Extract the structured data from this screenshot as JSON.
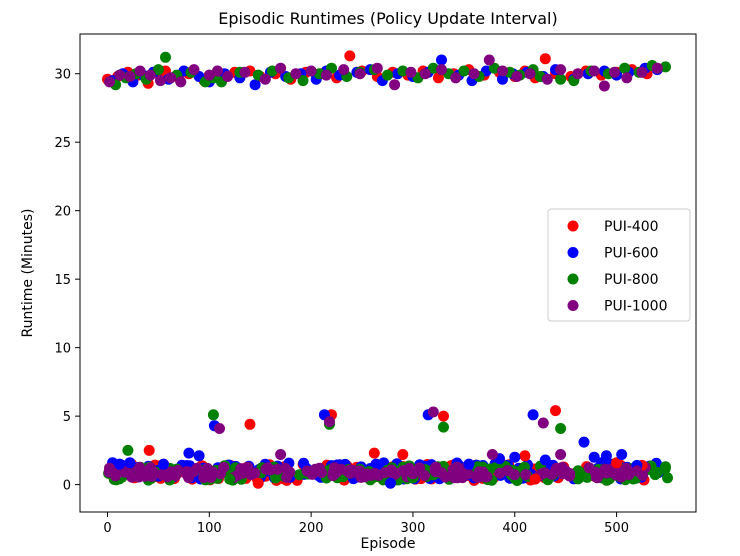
{
  "chart_data": {
    "type": "scatter",
    "title": "Episodic Runtimes (Policy Update Interval)",
    "xlabel": "Episode",
    "ylabel": "Runtime (Minutes)",
    "xlim": [
      -27,
      578
    ],
    "ylim": [
      -2,
      32.9
    ],
    "xticks": [
      0,
      100,
      200,
      300,
      400,
      500
    ],
    "yticks": [
      0,
      5,
      10,
      15,
      20,
      25,
      30
    ],
    "grid": false,
    "legend_position": "center-right",
    "series": [
      {
        "name": "PUI-400",
        "color": "#ff0000",
        "points": [
          [
            0,
            29.6
          ],
          [
            10,
            29.8
          ],
          [
            20,
            30.1
          ],
          [
            30,
            29.9
          ],
          [
            40,
            29.3
          ],
          [
            50,
            30.0
          ],
          [
            57,
            30.2
          ],
          [
            70,
            29.7
          ],
          [
            80,
            30.0
          ],
          [
            95,
            29.5
          ],
          [
            110,
            29.9
          ],
          [
            125,
            30.1
          ],
          [
            140,
            30.2
          ],
          [
            150,
            29.8
          ],
          [
            165,
            30.0
          ],
          [
            180,
            29.6
          ],
          [
            195,
            30.1
          ],
          [
            210,
            30.0
          ],
          [
            225,
            29.7
          ],
          [
            238,
            31.3
          ],
          [
            250,
            30.2
          ],
          [
            265,
            29.8
          ],
          [
            280,
            30.1
          ],
          [
            295,
            29.9
          ],
          [
            310,
            30.2
          ],
          [
            325,
            29.7
          ],
          [
            340,
            30.0
          ],
          [
            355,
            30.3
          ],
          [
            370,
            29.9
          ],
          [
            385,
            30.1
          ],
          [
            400,
            29.8
          ],
          [
            410,
            30.2
          ],
          [
            420,
            29.7
          ],
          [
            430,
            31.1
          ],
          [
            440,
            30.0
          ],
          [
            455,
            29.8
          ],
          [
            470,
            30.2
          ],
          [
            485,
            29.9
          ],
          [
            500,
            30.1
          ],
          [
            515,
            30.3
          ],
          [
            530,
            30.0
          ],
          [
            41,
            2.5
          ],
          [
            140,
            4.4
          ],
          [
            148,
            0.1
          ],
          [
            220,
            5.1
          ],
          [
            262,
            2.3
          ],
          [
            290,
            2.2
          ],
          [
            330,
            5.0
          ],
          [
            410,
            2.1
          ],
          [
            440,
            5.4
          ],
          [
            420,
            0.4
          ],
          [
            500,
            1.6
          ],
          [
            525,
            1.4
          ]
        ]
      },
      {
        "name": "PUI-600",
        "color": "#0000ff",
        "points": [
          [
            5,
            29.5
          ],
          [
            15,
            30.0
          ],
          [
            25,
            29.4
          ],
          [
            35,
            29.9
          ],
          [
            45,
            30.1
          ],
          [
            60,
            29.6
          ],
          [
            75,
            30.2
          ],
          [
            90,
            29.8
          ],
          [
            100,
            29.4
          ],
          [
            115,
            30.0
          ],
          [
            130,
            29.7
          ],
          [
            145,
            29.2
          ],
          [
            160,
            30.1
          ],
          [
            175,
            29.8
          ],
          [
            190,
            30.0
          ],
          [
            205,
            29.6
          ],
          [
            215,
            30.2
          ],
          [
            228,
            29.9
          ],
          [
            245,
            30.1
          ],
          [
            258,
            30.3
          ],
          [
            270,
            29.5
          ],
          [
            285,
            30.0
          ],
          [
            300,
            29.8
          ],
          [
            315,
            30.1
          ],
          [
            328,
            31.0
          ],
          [
            345,
            29.9
          ],
          [
            358,
            29.5
          ],
          [
            372,
            30.2
          ],
          [
            388,
            29.6
          ],
          [
            398,
            30.0
          ],
          [
            412,
            30.1
          ],
          [
            428,
            29.8
          ],
          [
            440,
            30.3
          ],
          [
            458,
            29.6
          ],
          [
            472,
            30.0
          ],
          [
            488,
            30.2
          ],
          [
            500,
            29.9
          ],
          [
            512,
            30.1
          ],
          [
            528,
            30.4
          ],
          [
            540,
            30.3
          ],
          [
            5,
            1.6
          ],
          [
            12,
            1.5
          ],
          [
            22,
            1.6
          ],
          [
            55,
            1.5
          ],
          [
            80,
            2.3
          ],
          [
            90,
            2.1
          ],
          [
            105,
            4.3
          ],
          [
            213,
            5.1
          ],
          [
            278,
            0.1
          ],
          [
            315,
            5.1
          ],
          [
            355,
            1.5
          ],
          [
            385,
            1.9
          ],
          [
            400,
            2.0
          ],
          [
            418,
            5.1
          ],
          [
            430,
            1.8
          ],
          [
            468,
            3.1
          ],
          [
            478,
            2.0
          ],
          [
            490,
            2.1
          ],
          [
            505,
            2.2
          ],
          [
            520,
            1.4
          ]
        ]
      },
      {
        "name": "PUI-800",
        "color": "#008000",
        "points": [
          [
            8,
            29.2
          ],
          [
            18,
            29.7
          ],
          [
            28,
            30.0
          ],
          [
            38,
            29.6
          ],
          [
            50,
            30.3
          ],
          [
            57,
            31.2
          ],
          [
            68,
            29.9
          ],
          [
            82,
            30.1
          ],
          [
            96,
            29.4
          ],
          [
            104,
            29.7
          ],
          [
            112,
            29.4
          ],
          [
            130,
            30.1
          ],
          [
            148,
            29.9
          ],
          [
            162,
            30.2
          ],
          [
            178,
            29.7
          ],
          [
            192,
            29.5
          ],
          [
            208,
            30.0
          ],
          [
            220,
            30.4
          ],
          [
            235,
            29.8
          ],
          [
            248,
            30.1
          ],
          [
            262,
            30.3
          ],
          [
            275,
            29.9
          ],
          [
            290,
            30.2
          ],
          [
            305,
            29.7
          ],
          [
            320,
            30.4
          ],
          [
            335,
            30.0
          ],
          [
            350,
            30.2
          ],
          [
            365,
            29.8
          ],
          [
            380,
            30.4
          ],
          [
            395,
            30.1
          ],
          [
            405,
            29.9
          ],
          [
            418,
            30.3
          ],
          [
            425,
            29.8
          ],
          [
            445,
            29.6
          ],
          [
            458,
            29.5
          ],
          [
            475,
            30.2
          ],
          [
            492,
            30.0
          ],
          [
            508,
            30.4
          ],
          [
            522,
            30.1
          ],
          [
            535,
            30.6
          ],
          [
            548,
            30.5
          ],
          [
            20,
            2.5
          ],
          [
            104,
            5.1
          ],
          [
            218,
            4.4
          ],
          [
            330,
            4.2
          ],
          [
            445,
            4.1
          ],
          [
            548,
            1.3
          ],
          [
            550,
            0.5
          ],
          [
            540,
            0.9
          ],
          [
            300,
            0.5
          ],
          [
            120,
            0.4
          ]
        ]
      },
      {
        "name": "PUI-1000",
        "color": "#800080",
        "points": [
          [
            2,
            29.4
          ],
          [
            12,
            29.9
          ],
          [
            22,
            29.8
          ],
          [
            32,
            30.2
          ],
          [
            42,
            29.9
          ],
          [
            52,
            29.5
          ],
          [
            62,
            29.7
          ],
          [
            72,
            29.4
          ],
          [
            85,
            30.3
          ],
          [
            100,
            29.9
          ],
          [
            108,
            30.2
          ],
          [
            118,
            29.8
          ],
          [
            135,
            30.1
          ],
          [
            155,
            29.6
          ],
          [
            170,
            30.4
          ],
          [
            185,
            30.0
          ],
          [
            200,
            30.2
          ],
          [
            215,
            29.9
          ],
          [
            232,
            30.3
          ],
          [
            248,
            30.0
          ],
          [
            265,
            30.4
          ],
          [
            282,
            29.2
          ],
          [
            298,
            30.1
          ],
          [
            312,
            30.0
          ],
          [
            328,
            30.3
          ],
          [
            342,
            29.7
          ],
          [
            360,
            30.0
          ],
          [
            375,
            31.0
          ],
          [
            388,
            30.2
          ],
          [
            402,
            29.8
          ],
          [
            415,
            30.0
          ],
          [
            432,
            29.6
          ],
          [
            445,
            30.3
          ],
          [
            462,
            30.0
          ],
          [
            478,
            30.2
          ],
          [
            488,
            29.1
          ],
          [
            498,
            30.1
          ],
          [
            510,
            29.7
          ],
          [
            525,
            30.1
          ],
          [
            540,
            30.4
          ],
          [
            2,
            1.2
          ],
          [
            110,
            4.1
          ],
          [
            170,
            2.2
          ],
          [
            218,
            4.6
          ],
          [
            320,
            5.3
          ],
          [
            378,
            2.2
          ],
          [
            428,
            4.5
          ],
          [
            445,
            2.2
          ],
          [
            520,
            1.0
          ],
          [
            300,
            0.8
          ]
        ]
      }
    ],
    "bottom_clusters": [
      {
        "series": "PUI-400",
        "color": "#ff0000",
        "x_range": [
          0,
          540
        ],
        "y_range": [
          0.3,
          1.5
        ]
      },
      {
        "series": "PUI-600",
        "color": "#0000ff",
        "x_range": [
          0,
          545
        ],
        "y_range": [
          0.4,
          1.6
        ]
      },
      {
        "series": "PUI-800",
        "color": "#008000",
        "x_range": [
          0,
          550
        ],
        "y_range": [
          0.3,
          1.4
        ]
      },
      {
        "series": "PUI-1000",
        "color": "#800080",
        "x_range": [
          0,
          545
        ],
        "y_range": [
          0.5,
          1.3
        ]
      }
    ]
  }
}
